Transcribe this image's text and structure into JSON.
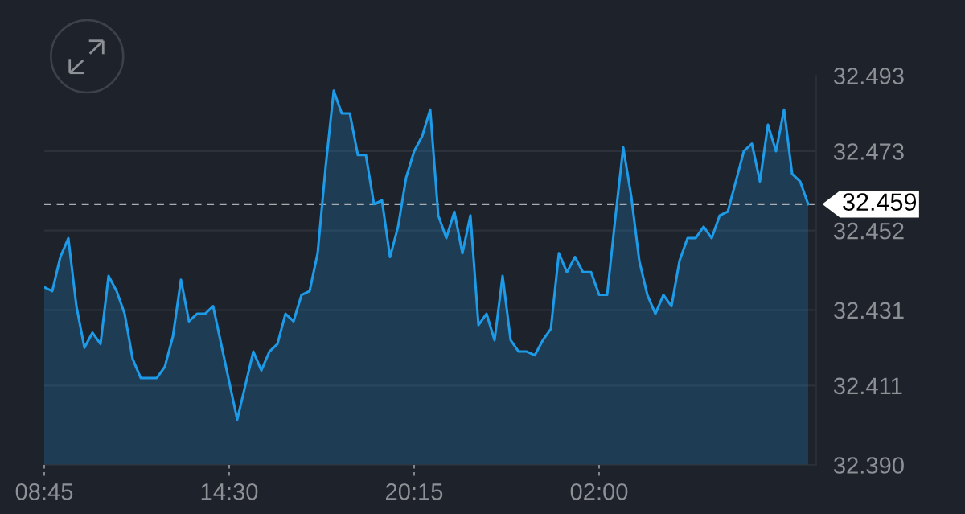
{
  "chart_data": {
    "type": "area",
    "categories": [
      "08:45",
      null,
      null,
      null,
      null,
      null,
      null,
      null,
      null,
      null,
      null,
      null,
      null,
      null,
      null,
      null,
      null,
      null,
      null,
      null,
      null,
      null,
      null,
      "14:30",
      null,
      null,
      null,
      null,
      null,
      null,
      null,
      null,
      null,
      null,
      null,
      null,
      null,
      null,
      null,
      null,
      null,
      null,
      null,
      null,
      null,
      null,
      "20:15",
      null,
      null,
      null,
      null,
      null,
      null,
      null,
      null,
      null,
      null,
      null,
      null,
      null,
      null,
      null,
      null,
      null,
      null,
      null,
      null,
      null,
      null,
      "02:00",
      null,
      null,
      null,
      null,
      null,
      null,
      null,
      null,
      null,
      null,
      null,
      null,
      null,
      null,
      null,
      null,
      null,
      null,
      null,
      null,
      null,
      null,
      null,
      null,
      null,
      null
    ],
    "series": [
      {
        "color": "#1e9be8",
        "values": [
          32.437,
          32.436,
          32.445,
          32.45,
          32.432,
          32.421,
          32.425,
          32.422,
          32.44,
          32.436,
          32.43,
          32.418,
          32.413,
          32.413,
          32.413,
          32.416,
          32.424,
          32.439,
          32.428,
          32.43,
          32.43,
          32.432,
          32.422,
          32.412,
          32.402,
          32.411,
          32.42,
          32.415,
          32.42,
          32.422,
          32.43,
          32.428,
          32.435,
          32.436,
          32.446,
          32.469,
          32.489,
          32.483,
          32.483,
          32.472,
          32.472,
          32.459,
          32.46,
          32.445,
          32.453,
          32.466,
          32.473,
          32.477,
          32.484,
          32.456,
          32.45,
          32.457,
          32.446,
          32.456,
          32.427,
          32.43,
          32.423,
          32.44,
          32.423,
          32.42,
          32.42,
          32.419,
          32.423,
          32.426,
          32.446,
          32.441,
          32.445,
          32.441,
          32.441,
          32.435,
          32.435,
          32.455,
          32.474,
          32.461,
          32.444,
          32.435,
          32.43,
          32.435,
          32.432,
          32.444,
          32.45,
          32.45,
          32.453,
          32.45,
          32.456,
          32.457,
          32.465,
          32.473,
          32.475,
          32.465,
          32.48,
          32.473,
          32.484,
          32.467,
          32.465,
          32.459
        ]
      }
    ],
    "ylim": [
      32.39,
      32.493
    ],
    "yticks": [
      {
        "value": 32.39,
        "label": "32.390"
      },
      32.411,
      32.431,
      32.452,
      32.473,
      32.493
    ],
    "grid": "y",
    "ref_lines": [
      {
        "axis": "y",
        "value": 32.459,
        "label": "32.459",
        "color": "#a9acb1",
        "line_style": "dashed"
      }
    ]
  }
}
